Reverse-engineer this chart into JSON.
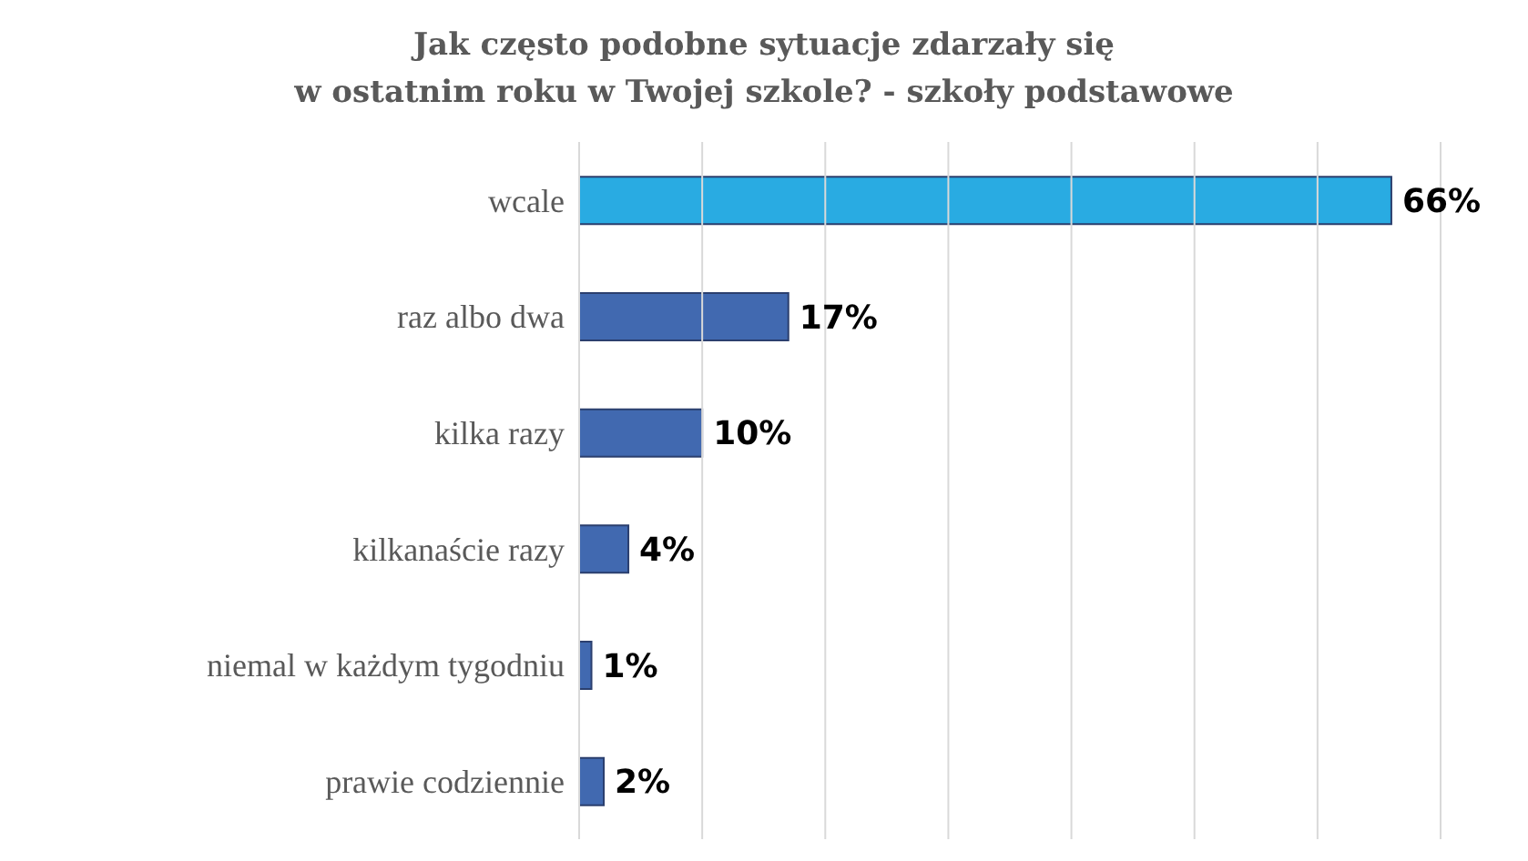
{
  "chart_data": {
    "type": "bar",
    "orientation": "horizontal",
    "title": "Jak często podobne sytuacje zdarzały się\nw ostatnim roku w Twojej szkole? - szkoły podstawowe",
    "categories": [
      "wcale",
      "raz albo dwa",
      "kilka razy",
      "kilkanaście razy",
      "niemal w każdym tygodniu",
      "prawie codziennie"
    ],
    "values": [
      66,
      17,
      10,
      4,
      1,
      2
    ],
    "colors": [
      "#29abe2",
      "#4169b0",
      "#4169b0",
      "#4169b0",
      "#4169b0",
      "#4169b0"
    ],
    "value_labels": [
      "66%",
      "17%",
      "10%",
      "4%",
      "1%",
      "2%"
    ],
    "xlim": [
      0,
      70
    ],
    "xticks": [
      {
        "value": 0,
        "label": null
      },
      {
        "value": 10,
        "label": null
      },
      {
        "value": 20,
        "label": null
      },
      {
        "value": 30,
        "label": null
      },
      {
        "value": 40,
        "label": null
      },
      {
        "value": 50,
        "label": null
      },
      {
        "value": 60,
        "label": null
      },
      {
        "value": 70,
        "label": null
      }
    ],
    "grid": "x",
    "tick_labels": "y",
    "legend": false
  }
}
